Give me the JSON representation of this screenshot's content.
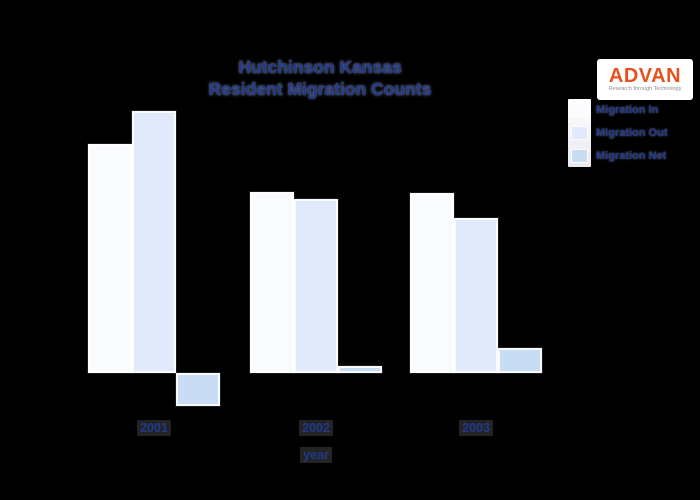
{
  "background_color": "#000000",
  "header": {
    "title_line1": "Hutchinson Kansas",
    "title_line2": "Resident Migration Counts",
    "title_color": "#21398f"
  },
  "logo": {
    "name": "ADVAN",
    "tagline": "Research through Technology",
    "text_color": "#e8501e",
    "bg_color": "#ffffff"
  },
  "legend": {
    "items": [
      {
        "label": "Migration In"
      },
      {
        "label": "Migration Out"
      },
      {
        "label": "Migration Net"
      }
    ]
  },
  "x_axis": {
    "title": "year",
    "tick_labels": [
      "2001",
      "2002",
      "2003"
    ]
  },
  "chart_data": {
    "type": "bar",
    "title": "Hutchinson Kansas Resident Migration Counts",
    "categories": [
      "2001",
      "2002",
      "2003"
    ],
    "series": [
      {
        "name": "Migration In",
        "values": [
          2290,
          1810,
          1800
        ],
        "color": "#fafbfe"
      },
      {
        "name": "Migration Out",
        "values": [
          2620,
          1740,
          1550
        ],
        "color": "#e1eafa"
      },
      {
        "name": "Migration Net",
        "values": [
          -330,
          70,
          250
        ],
        "color": "#c8ddf4"
      }
    ],
    "xlabel": "year",
    "ylabel": "",
    "ylim": [
      -500,
      2800
    ],
    "grid": false,
    "y_axis_values_visible": false,
    "legend_position": "upper right",
    "background": "#000000"
  }
}
